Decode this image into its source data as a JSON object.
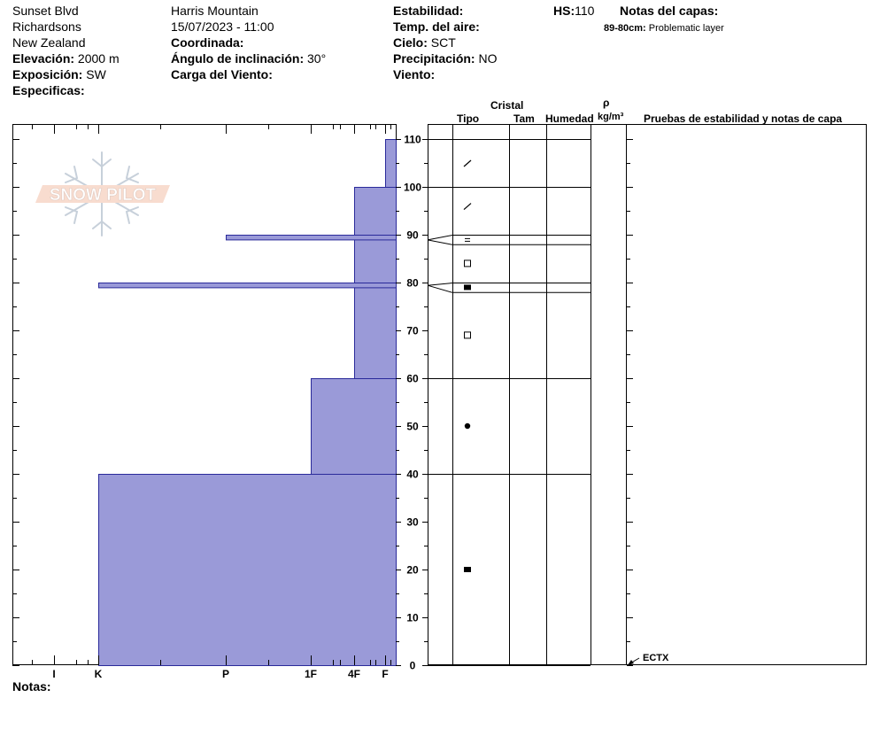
{
  "header": {
    "location_name": "Sunset Blvd",
    "area": "Richardsons",
    "country": "New Zealand",
    "elevation_label": "Elevación:",
    "elevation_value": "2000 m",
    "exposure_label": "Exposición:",
    "exposure_value": "SW",
    "specifics_label": "Especificas:",
    "observer": "Harris Mountain",
    "datetime": "15/07/2023 - 11:00",
    "coordinates_label": "Coordinada:",
    "slope_label": "Ángulo de inclinación:",
    "slope_value": "30°",
    "wind_load_label": "Carga del Viento:",
    "stability_label": "Estabilidad:",
    "air_temp_label": "Temp. del aire:",
    "sky_label": "Cielo:",
    "sky_value": "SCT",
    "precip_label": "Precipitación:",
    "precip_value": "NO",
    "wind_label": "Viento:",
    "hs_label": "HS:",
    "hs_value": "110",
    "layer_notes_label": "Notas del capas:",
    "layer_note_range": "89-80cm:",
    "layer_note_text": "Problematic layer"
  },
  "logo": {
    "text": "SNOW PILOT"
  },
  "columns": {
    "crystal": "Cristal",
    "type": "Tipo",
    "size": "Tam",
    "moisture": "Humedad",
    "density_symbol": "ρ",
    "density_unit": "kg/m³",
    "tests": "Pruebas de estabilidad y notas de capa"
  },
  "footer": {
    "notes_label": "Notas:"
  },
  "chart_data": {
    "type": "bar",
    "description_axis_x": [
      "I",
      "K",
      "P",
      "1F",
      "4F",
      "F"
    ],
    "y_axis": {
      "min": 0,
      "max": 110,
      "ticks": [
        0,
        10,
        20,
        30,
        40,
        50,
        60,
        70,
        80,
        90,
        100,
        110
      ]
    },
    "hardness_layers": [
      {
        "bottom": 0,
        "top": 40,
        "hardness": "K"
      },
      {
        "bottom": 40,
        "top": 60,
        "hardness": "1F"
      },
      {
        "bottom": 60,
        "top": 100,
        "hardness": "4F"
      },
      {
        "bottom": 100,
        "top": 110,
        "hardness": "F"
      },
      {
        "bottom": 89,
        "top": 90,
        "hardness": "P"
      },
      {
        "bottom": 79,
        "top": 80,
        "hardness": "K"
      }
    ],
    "layer_boundaries": [
      0,
      40,
      60,
      78,
      80,
      88,
      90,
      100,
      110
    ],
    "grain_types": [
      {
        "height": 105,
        "symbol": "decomposing"
      },
      {
        "height": 96,
        "symbol": "decomposing"
      },
      {
        "height": 89,
        "symbol": "surface-hoar"
      },
      {
        "height": 84,
        "symbol": "faceted"
      },
      {
        "height": 79,
        "symbol": "faceted-solid"
      },
      {
        "height": 69,
        "symbol": "faceted"
      },
      {
        "height": 50,
        "symbol": "rounded"
      },
      {
        "height": 20,
        "symbol": "faceted-solid"
      }
    ],
    "tests": [
      {
        "height": 0,
        "label": "ECTX"
      }
    ],
    "bar_color": "#9a9ad8",
    "bar_stroke": "#2a2a9a"
  }
}
